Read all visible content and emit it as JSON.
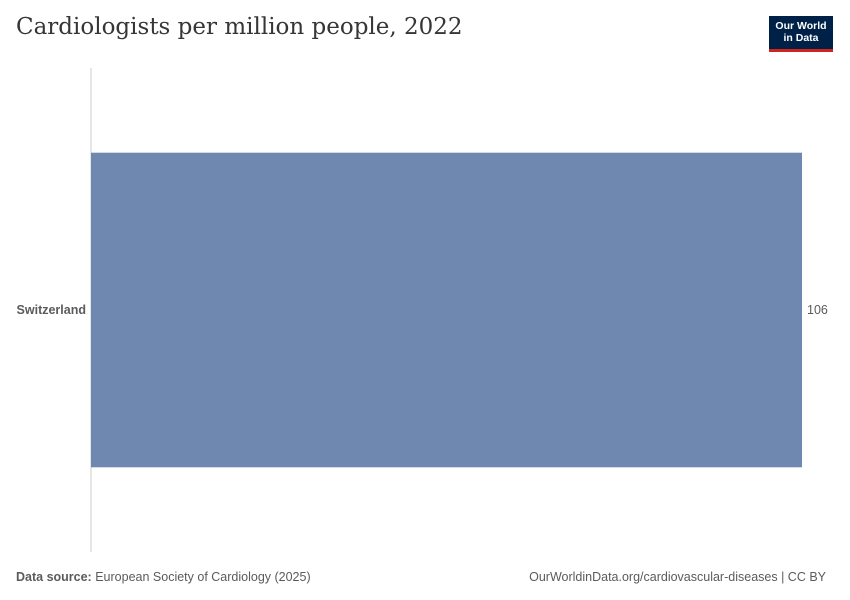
{
  "header": {
    "title": "Cardiologists per million people, 2022",
    "logo_line1": "Our World",
    "logo_line2": "in Data"
  },
  "footer": {
    "source_label": "Data source:",
    "source_text": "European Society of Cardiology (2025)",
    "url_text": "OurWorldinData.org/cardiovascular-diseases | CC BY"
  },
  "colors": {
    "bar": "#6f88af",
    "axis": "#cccccc",
    "logo_bg": "#002147",
    "logo_accent": "#ce261e"
  },
  "chart_data": {
    "type": "bar",
    "orientation": "horizontal",
    "title": "Cardiologists per million people, 2022",
    "categories": [
      "Switzerland"
    ],
    "values": [
      106
    ],
    "value_labels": [
      "106"
    ],
    "xlim": [
      0,
      106
    ],
    "grid": false,
    "legend": "none"
  }
}
